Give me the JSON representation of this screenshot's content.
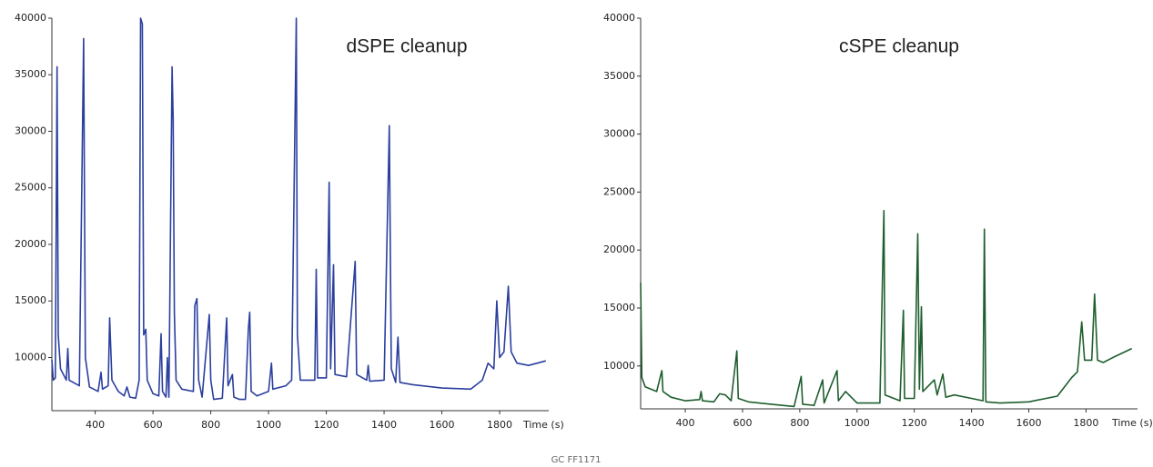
{
  "chart_data": [
    {
      "type": "line",
      "title": "dSPE cleanup",
      "x_label": "Time (s)",
      "xlim": [
        250,
        1970
      ],
      "xticks": [
        400,
        600,
        800,
        1000,
        1200,
        1400,
        1600,
        1800
      ],
      "ylim": [
        5300,
        40000
      ],
      "yticks": [
        10000,
        15000,
        20000,
        25000,
        30000,
        35000,
        40000
      ],
      "series": [
        {
          "color": "#2b3f9e",
          "x": [
            250,
            255,
            262,
            268,
            272,
            280,
            300,
            305,
            310,
            345,
            360,
            366,
            380,
            410,
            420,
            425,
            445,
            450,
            458,
            480,
            500,
            510,
            520,
            540,
            552,
            557,
            563,
            568,
            575,
            580,
            600,
            620,
            628,
            633,
            645,
            650,
            655,
            666,
            670,
            674,
            680,
            700,
            740,
            745,
            752,
            758,
            770,
            795,
            800,
            810,
            840,
            855,
            860,
            875,
            880,
            900,
            920,
            930,
            935,
            940,
            960,
            1000,
            1010,
            1015,
            1060,
            1080,
            1096,
            1100,
            1110,
            1160,
            1165,
            1170,
            1200,
            1210,
            1215,
            1225,
            1230,
            1270,
            1300,
            1305,
            1340,
            1345,
            1350,
            1400,
            1418,
            1425,
            1440,
            1448,
            1455,
            1500,
            1600,
            1700,
            1740,
            1760,
            1780,
            1790,
            1800,
            1815,
            1830,
            1840,
            1860,
            1900,
            1960
          ],
          "values": [
            9800,
            8000,
            8200,
            35700,
            12000,
            9000,
            8000,
            10800,
            8000,
            7500,
            38200,
            10000,
            7400,
            7000,
            8700,
            7200,
            7500,
            13500,
            8000,
            7000,
            6600,
            7400,
            6500,
            6400,
            8000,
            40000,
            39500,
            12000,
            12500,
            8000,
            6800,
            6600,
            12100,
            7000,
            6500,
            10000,
            6500,
            35700,
            31000,
            14000,
            8000,
            7200,
            7000,
            14600,
            15200,
            8000,
            6500,
            13800,
            8000,
            6300,
            6400,
            13500,
            7500,
            8500,
            6500,
            6300,
            6300,
            12500,
            14000,
            7000,
            6600,
            7000,
            9500,
            7200,
            7500,
            8000,
            40000,
            12000,
            8000,
            8000,
            17800,
            8200,
            8200,
            25500,
            9000,
            18200,
            8500,
            8300,
            18500,
            8500,
            8000,
            9300,
            7900,
            8000,
            30500,
            9000,
            7800,
            11800,
            7800,
            7600,
            7300,
            7200,
            8000,
            9500,
            9000,
            15000,
            10000,
            10500,
            16300,
            10500,
            9500,
            9300,
            9700
          ]
        }
      ]
    },
    {
      "type": "line",
      "title": "cSPE cleanup",
      "x_label": "Time (s)",
      "xlim": [
        244,
        1980
      ],
      "xticks": [
        400,
        600,
        800,
        1000,
        1200,
        1400,
        1600,
        1800
      ],
      "ylim": [
        6300,
        40000
      ],
      "yticks": [
        10000,
        15000,
        20000,
        25000,
        30000,
        35000,
        40000
      ],
      "series": [
        {
          "color": "#1e5e2e",
          "x": [
            244,
            248,
            260,
            300,
            318,
            322,
            350,
            400,
            450,
            455,
            460,
            500,
            520,
            540,
            560,
            580,
            585,
            620,
            700,
            780,
            805,
            810,
            850,
            880,
            885,
            930,
            935,
            960,
            1000,
            1080,
            1094,
            1098,
            1150,
            1162,
            1166,
            1200,
            1212,
            1218,
            1225,
            1230,
            1270,
            1280,
            1300,
            1310,
            1340,
            1400,
            1440,
            1445,
            1450,
            1500,
            1600,
            1700,
            1750,
            1770,
            1785,
            1795,
            1820,
            1830,
            1840,
            1860,
            1900,
            1960
          ],
          "values": [
            17200,
            9000,
            8200,
            7800,
            9600,
            7800,
            7300,
            7000,
            7100,
            7800,
            7000,
            6900,
            7600,
            7500,
            7000,
            11300,
            7200,
            6900,
            6700,
            6500,
            9100,
            6700,
            6600,
            8800,
            6800,
            9600,
            7000,
            7800,
            6800,
            6800,
            23400,
            7500,
            7000,
            14800,
            7200,
            7200,
            21400,
            8000,
            15100,
            7800,
            8800,
            7500,
            9300,
            7300,
            7500,
            7200,
            7000,
            21800,
            6900,
            6800,
            6900,
            7400,
            9000,
            9500,
            13800,
            10500,
            10500,
            16200,
            10500,
            10300,
            10800,
            11500
          ]
        }
      ]
    }
  ],
  "footer": "GC FF1171"
}
